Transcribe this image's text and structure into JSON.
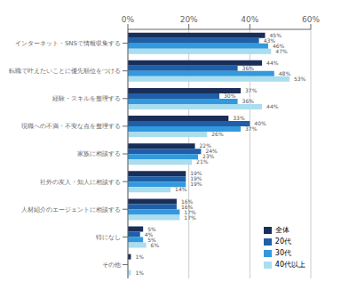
{
  "chart_data": {
    "type": "bar",
    "orientation": "horizontal",
    "categories": [
      "インターネット・SNSで情報収集する",
      "転職で叶えたいことに優先順位をつける",
      "経験・スキルを整理する",
      "現職への不満・不安な点を整理する",
      "家族に相談する",
      "社外の友人・知人に相談する",
      "人材紹介のエージェントに相談する",
      "特になし",
      "その他"
    ],
    "series": [
      {
        "name": "全体",
        "color": "#1a2e5a",
        "values": [
          45,
          44,
          37,
          33,
          22,
          19,
          16,
          5,
          1
        ],
        "value_labels": [
          "45%",
          "44%",
          "37%",
          "33%",
          "22%",
          "19%",
          "16%",
          "5%",
          "1%"
        ]
      },
      {
        "name": "20代",
        "color": "#1e5fa8",
        "values": [
          43,
          36,
          30,
          40,
          24,
          19,
          16,
          4,
          0
        ],
        "value_labels": [
          "43%",
          "36%",
          "30%",
          "40%",
          "24%",
          "19%",
          "16%",
          "4%",
          null
        ]
      },
      {
        "name": "30代",
        "color": "#3399dd",
        "values": [
          46,
          48,
          36,
          37,
          23,
          19,
          17,
          5,
          0
        ],
        "value_labels": [
          "46%",
          "48%",
          "36%",
          "37%",
          "23%",
          "19%",
          "17%",
          "5%",
          null
        ]
      },
      {
        "name": "40代以上",
        "color": "#aaddee",
        "values": [
          47,
          53,
          44,
          26,
          21,
          14,
          17,
          6,
          1
        ],
        "value_labels": [
          "47%",
          "53%",
          "44%",
          "26%",
          "21%",
          "14%",
          "17%",
          "6%",
          "1%"
        ]
      }
    ],
    "xlim": [
      0,
      60
    ],
    "xticks": [
      {
        "value": 0,
        "label": "0%"
      },
      {
        "value": 20,
        "label": "20%"
      },
      {
        "value": 40,
        "label": "40%"
      },
      {
        "value": 60,
        "label": "60%"
      }
    ],
    "grid": true,
    "legend": "lower right",
    "data_labels": true
  }
}
